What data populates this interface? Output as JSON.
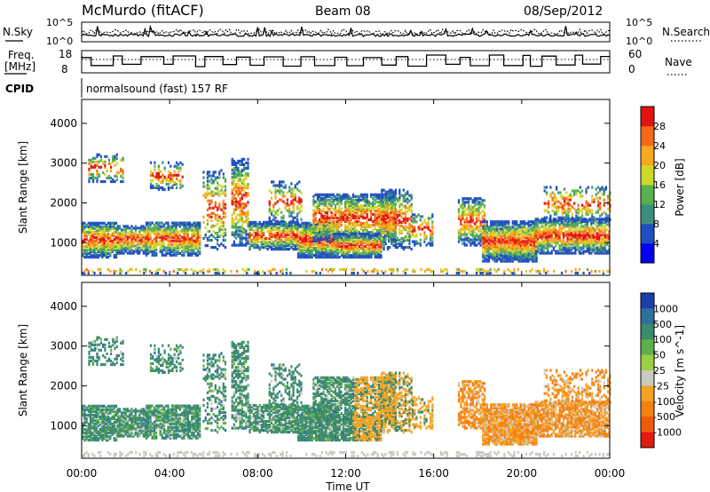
{
  "header": {
    "station": "McMurdo (fitACF)",
    "beam": "Beam 08",
    "date": "08/Sep/2012"
  },
  "noise_panel": {
    "left_label": "N.Sky",
    "right_label": "N.Search",
    "tick_top": "10^5",
    "tick_bottom": "10^0",
    "right_tick_top": "10^5",
    "right_tick_bottom": "10^0"
  },
  "freq_panel": {
    "left_label_line1": "Freq.",
    "left_label_line2": "[MHz]",
    "right_label": "Nave",
    "left_ticks": [
      "18",
      "8"
    ],
    "right_ticks": [
      "60",
      "0"
    ]
  },
  "cpid": {
    "label": "CPID",
    "value": "normalsound (fast) 157 RF"
  },
  "x_axis": {
    "title": "Time UT",
    "ticks": [
      "00:00",
      "04:00",
      "08:00",
      "12:00",
      "16:00",
      "20:00",
      "00:00"
    ]
  },
  "chart_data": [
    {
      "type": "heatmap",
      "name": "power",
      "ylabel": "Slant Range [km]",
      "ylim": [
        180,
        4600
      ],
      "yticks": [
        "1000",
        "2000",
        "3000",
        "4000"
      ],
      "xlim_hours": [
        0,
        24
      ],
      "colorbar": {
        "label": "Power [dB]",
        "ticks": [
          "4",
          "8",
          "12",
          "16",
          "20",
          "24",
          "28"
        ],
        "colors": [
          "#0000ee",
          "#1f4fbf",
          "#3c8f7e",
          "#58b04e",
          "#cdd92a",
          "#f7a81d",
          "#f46a18",
          "#e21313"
        ]
      }
    },
    {
      "type": "heatmap",
      "name": "velocity",
      "ylabel": "Slant Range [km]",
      "ylim": [
        180,
        4600
      ],
      "yticks": [
        "1000",
        "2000",
        "3000",
        "4000"
      ],
      "xlim_hours": [
        0,
        24
      ],
      "colorbar": {
        "label": "Velocity [m s^-1]",
        "ticks": [
          "1000",
          "500",
          "100",
          "50",
          "25",
          "-25",
          "-100",
          "-500",
          "-1000"
        ],
        "colors": [
          "#1c3fae",
          "#2d6f9d",
          "#3a8a6c",
          "#5fb04a",
          "#9bcf46",
          "#c9c9c0",
          "#f4a224",
          "#f48012",
          "#ee5b0c",
          "#e41a10"
        ]
      }
    }
  ]
}
